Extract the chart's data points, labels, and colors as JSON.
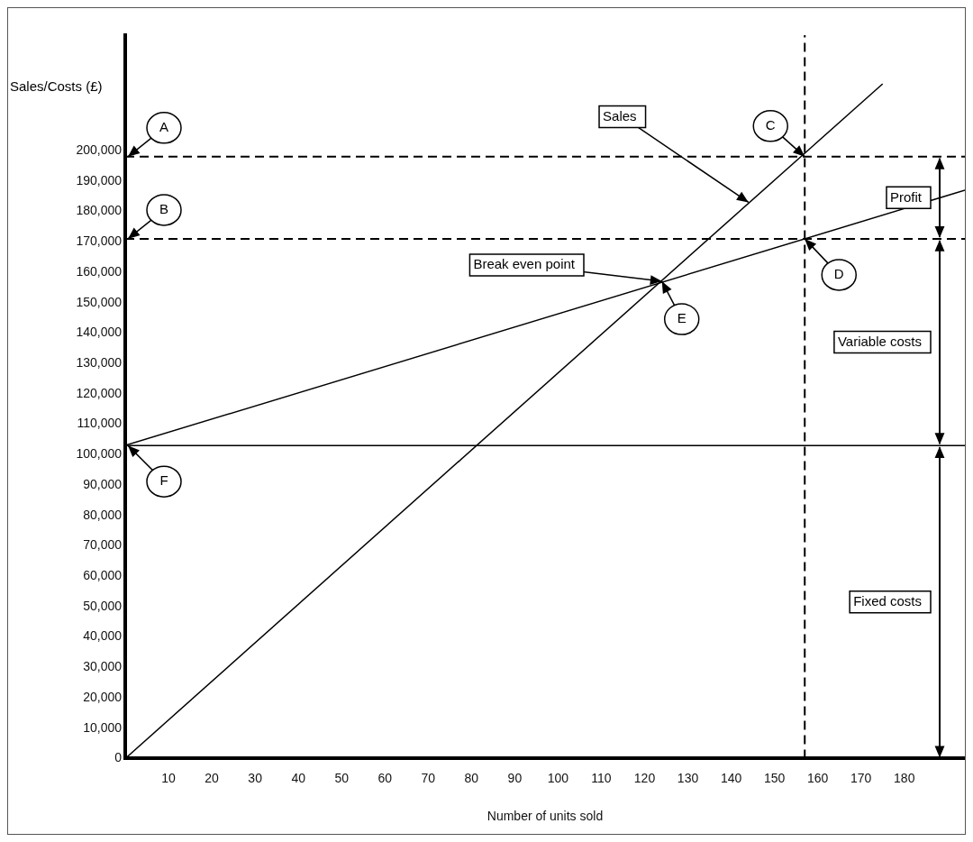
{
  "chart_data": {
    "type": "line",
    "xlabel": "Number of units sold",
    "ylabel": "Sales/Costs (£)",
    "xlim": [
      0,
      194
    ],
    "xticks": [
      10,
      20,
      30,
      40,
      50,
      60,
      70,
      80,
      90,
      100,
      110,
      120,
      130,
      140,
      150,
      160,
      170,
      180
    ],
    "ylim": [
      0,
      238000
    ],
    "yticks": [
      0,
      {
        "value": 10000,
        "label": "10,000"
      },
      {
        "value": 20000,
        "label": "20,000"
      },
      {
        "value": 30000,
        "label": "30,000"
      },
      {
        "value": 40000,
        "label": "40,000"
      },
      {
        "value": 50000,
        "label": "50,000"
      },
      {
        "value": 60000,
        "label": "60,000"
      },
      {
        "value": 70000,
        "label": "70,000"
      },
      {
        "value": 80000,
        "label": "80,000"
      },
      {
        "value": 90000,
        "label": "90,000"
      },
      {
        "value": 100000,
        "label": "100,000"
      },
      {
        "value": 110000,
        "label": "110,000"
      },
      {
        "value": 120000,
        "label": "120,000"
      },
      {
        "value": 130000,
        "label": "130,000"
      },
      {
        "value": 140000,
        "label": "140,000"
      },
      {
        "value": 150000,
        "label": "150,000"
      },
      {
        "value": 160000,
        "label": "160,000"
      },
      {
        "value": 170000,
        "label": "170,000"
      },
      {
        "value": 180000,
        "label": "180,000"
      },
      {
        "value": 190000,
        "label": "190,000"
      },
      {
        "value": 200000,
        "label": "200,000"
      }
    ],
    "grid": false,
    "legend": false,
    "line_style": "solid",
    "marker": "none",
    "series": [
      {
        "color": "#000000",
        "x": [
          0,
          175
        ],
        "values": [
          0,
          222000
        ]
      },
      {
        "color": "#000000",
        "x": [
          0,
          194
        ],
        "values": [
          103000,
          187000
        ]
      },
      {
        "color": "#000000",
        "x": [
          0,
          194
        ],
        "values": [
          103000,
          103000
        ]
      }
    ],
    "ref_lines": [
      {
        "axis": "y",
        "value": 198000,
        "line_style": "dashed",
        "color": "#000000"
      },
      {
        "axis": "y",
        "value": 171000,
        "line_style": "dashed",
        "color": "#000000"
      },
      {
        "axis": "x",
        "value": 157,
        "line_style": "dashed",
        "color": "#000000"
      }
    ],
    "annotations": [
      "Profit",
      "Variable costs",
      "Fixed costs",
      {
        "text": "A",
        "x": 0,
        "y": 198000
      },
      {
        "text": "B",
        "x": 0,
        "y": 171000
      },
      {
        "text": "C",
        "x": 157,
        "y": 198000
      },
      {
        "text": "D",
        "x": 157,
        "y": 171000
      },
      {
        "text": "E",
        "x": 124,
        "y": 157000
      },
      {
        "text": "F",
        "x": 0,
        "y": 103000
      },
      {
        "text": "Sales",
        "x": 144,
        "y": 183000
      },
      {
        "text": "Break even point",
        "x": 124,
        "y": 157000
      }
    ]
  }
}
